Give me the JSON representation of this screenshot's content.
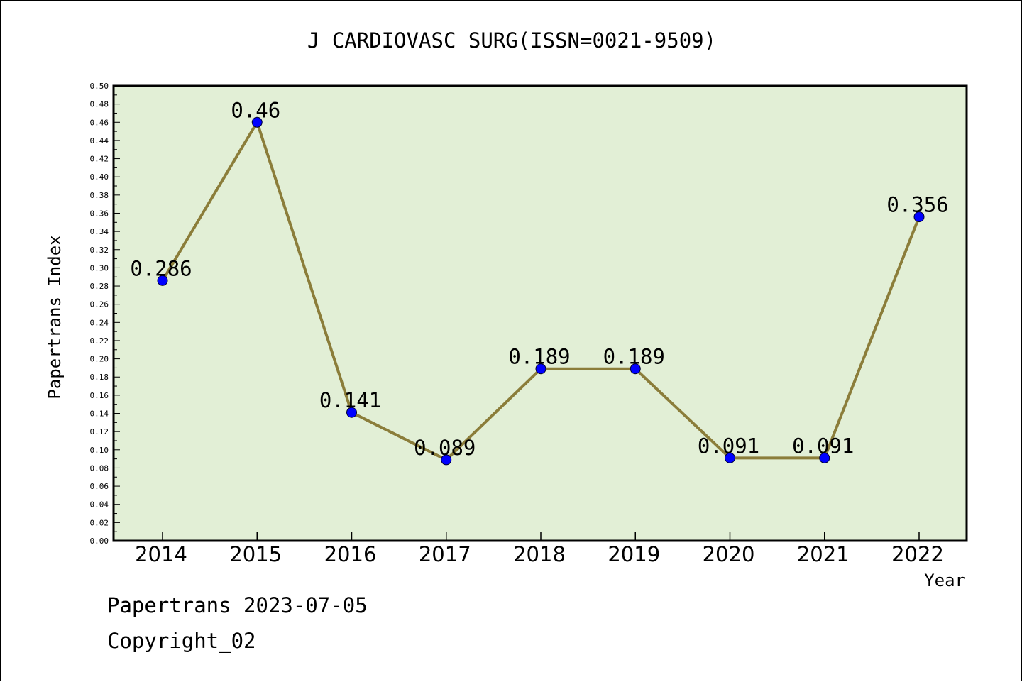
{
  "chart_data": {
    "type": "line",
    "title": "J CARDIOVASC SURG(ISSN=0021-9509)",
    "xlabel": "Year",
    "ylabel": "Papertrans Index",
    "categories": [
      "2014",
      "2015",
      "2016",
      "2017",
      "2018",
      "2019",
      "2020",
      "2021",
      "2022"
    ],
    "series": [
      {
        "values": [
          0.286,
          0.46,
          0.141,
          0.089,
          0.189,
          0.189,
          0.091,
          0.091,
          0.356
        ]
      }
    ],
    "data_labels": [
      "0.286",
      "0.46",
      "0.141",
      "0.089",
      "0.189",
      "0.189",
      "0.091",
      "0.091",
      "0.356"
    ],
    "ylim": [
      0,
      0.5
    ],
    "ytick_step": 0.02,
    "ytick_labels": [
      "0.00",
      "0.02",
      "0.04",
      "0.06",
      "0.08",
      "0.10",
      "0.12",
      "0.14",
      "0.16",
      "0.18",
      "0.20",
      "0.22",
      "0.24",
      "0.26",
      "0.28",
      "0.30",
      "0.32",
      "0.34",
      "0.36",
      "0.38",
      "0.40",
      "0.42",
      "0.44",
      "0.46",
      "0.48",
      "0.50"
    ],
    "grid": false,
    "colors": {
      "plot_background": "#e2efd6",
      "line": "#8b7d3a",
      "marker": "#0000ff"
    }
  },
  "footer": {
    "line1": "Papertrans 2023-07-05",
    "line2": "Copyright_02"
  }
}
